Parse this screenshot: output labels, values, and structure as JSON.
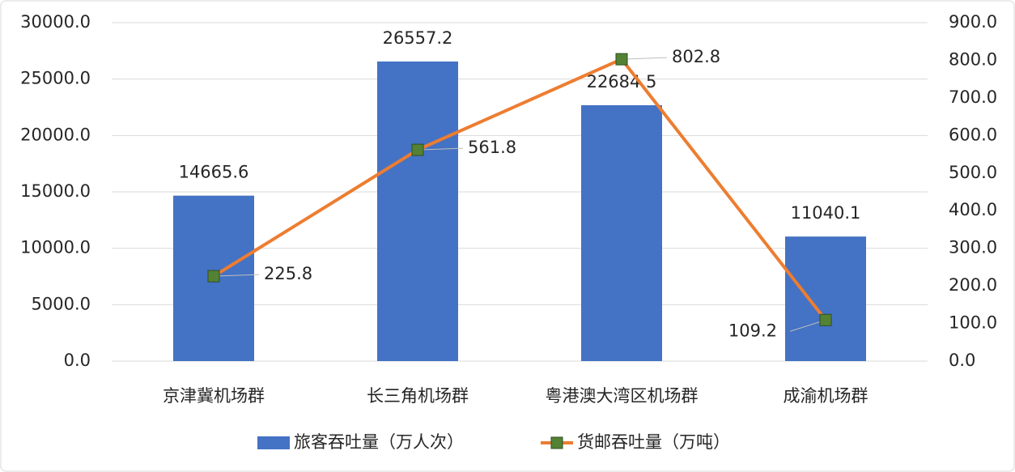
{
  "chart_data": {
    "type": "combo",
    "categories": [
      "京津冀机场群",
      "长三角机场群",
      "粤港澳大湾区机场群",
      "成渝机场群"
    ],
    "series": [
      {
        "name": "旅客吞吐量（万人次）",
        "type": "bar",
        "color": "#4472c4",
        "values": [
          14665.6,
          26557.2,
          22684.5,
          11040.1
        ]
      },
      {
        "name": "货邮吞吐量（万吨）",
        "type": "line",
        "axis": "y2",
        "color": "#ed7d31",
        "marker_color": "#548235",
        "values": [
          225.8,
          561.8,
          802.8,
          109.2
        ]
      }
    ],
    "ylim": [
      0,
      30000
    ],
    "yticks": [
      {
        "value": 0,
        "label": "0.0"
      },
      {
        "value": 5000,
        "label": "5000.0"
      },
      {
        "value": 10000,
        "label": "10000.0"
      },
      {
        "value": 15000,
        "label": "15000.0"
      },
      {
        "value": 20000,
        "label": "20000.0"
      },
      {
        "value": 25000,
        "label": "25000.0"
      },
      {
        "value": 30000,
        "label": "30000.0"
      }
    ],
    "y2lim": [
      0,
      900
    ],
    "y2ticks": [
      {
        "value": 0,
        "label": "0.0"
      },
      {
        "value": 100,
        "label": "100.0"
      },
      {
        "value": 200,
        "label": "200.0"
      },
      {
        "value": 300,
        "label": "300.0"
      },
      {
        "value": 400,
        "label": "400.0"
      },
      {
        "value": 500,
        "label": "500.0"
      },
      {
        "value": 600,
        "label": "600.0"
      },
      {
        "value": 700,
        "label": "700.0"
      },
      {
        "value": 800,
        "label": "800.0"
      },
      {
        "value": 900,
        "label": "900.0"
      }
    ],
    "grid": true,
    "legend": "bottom"
  }
}
